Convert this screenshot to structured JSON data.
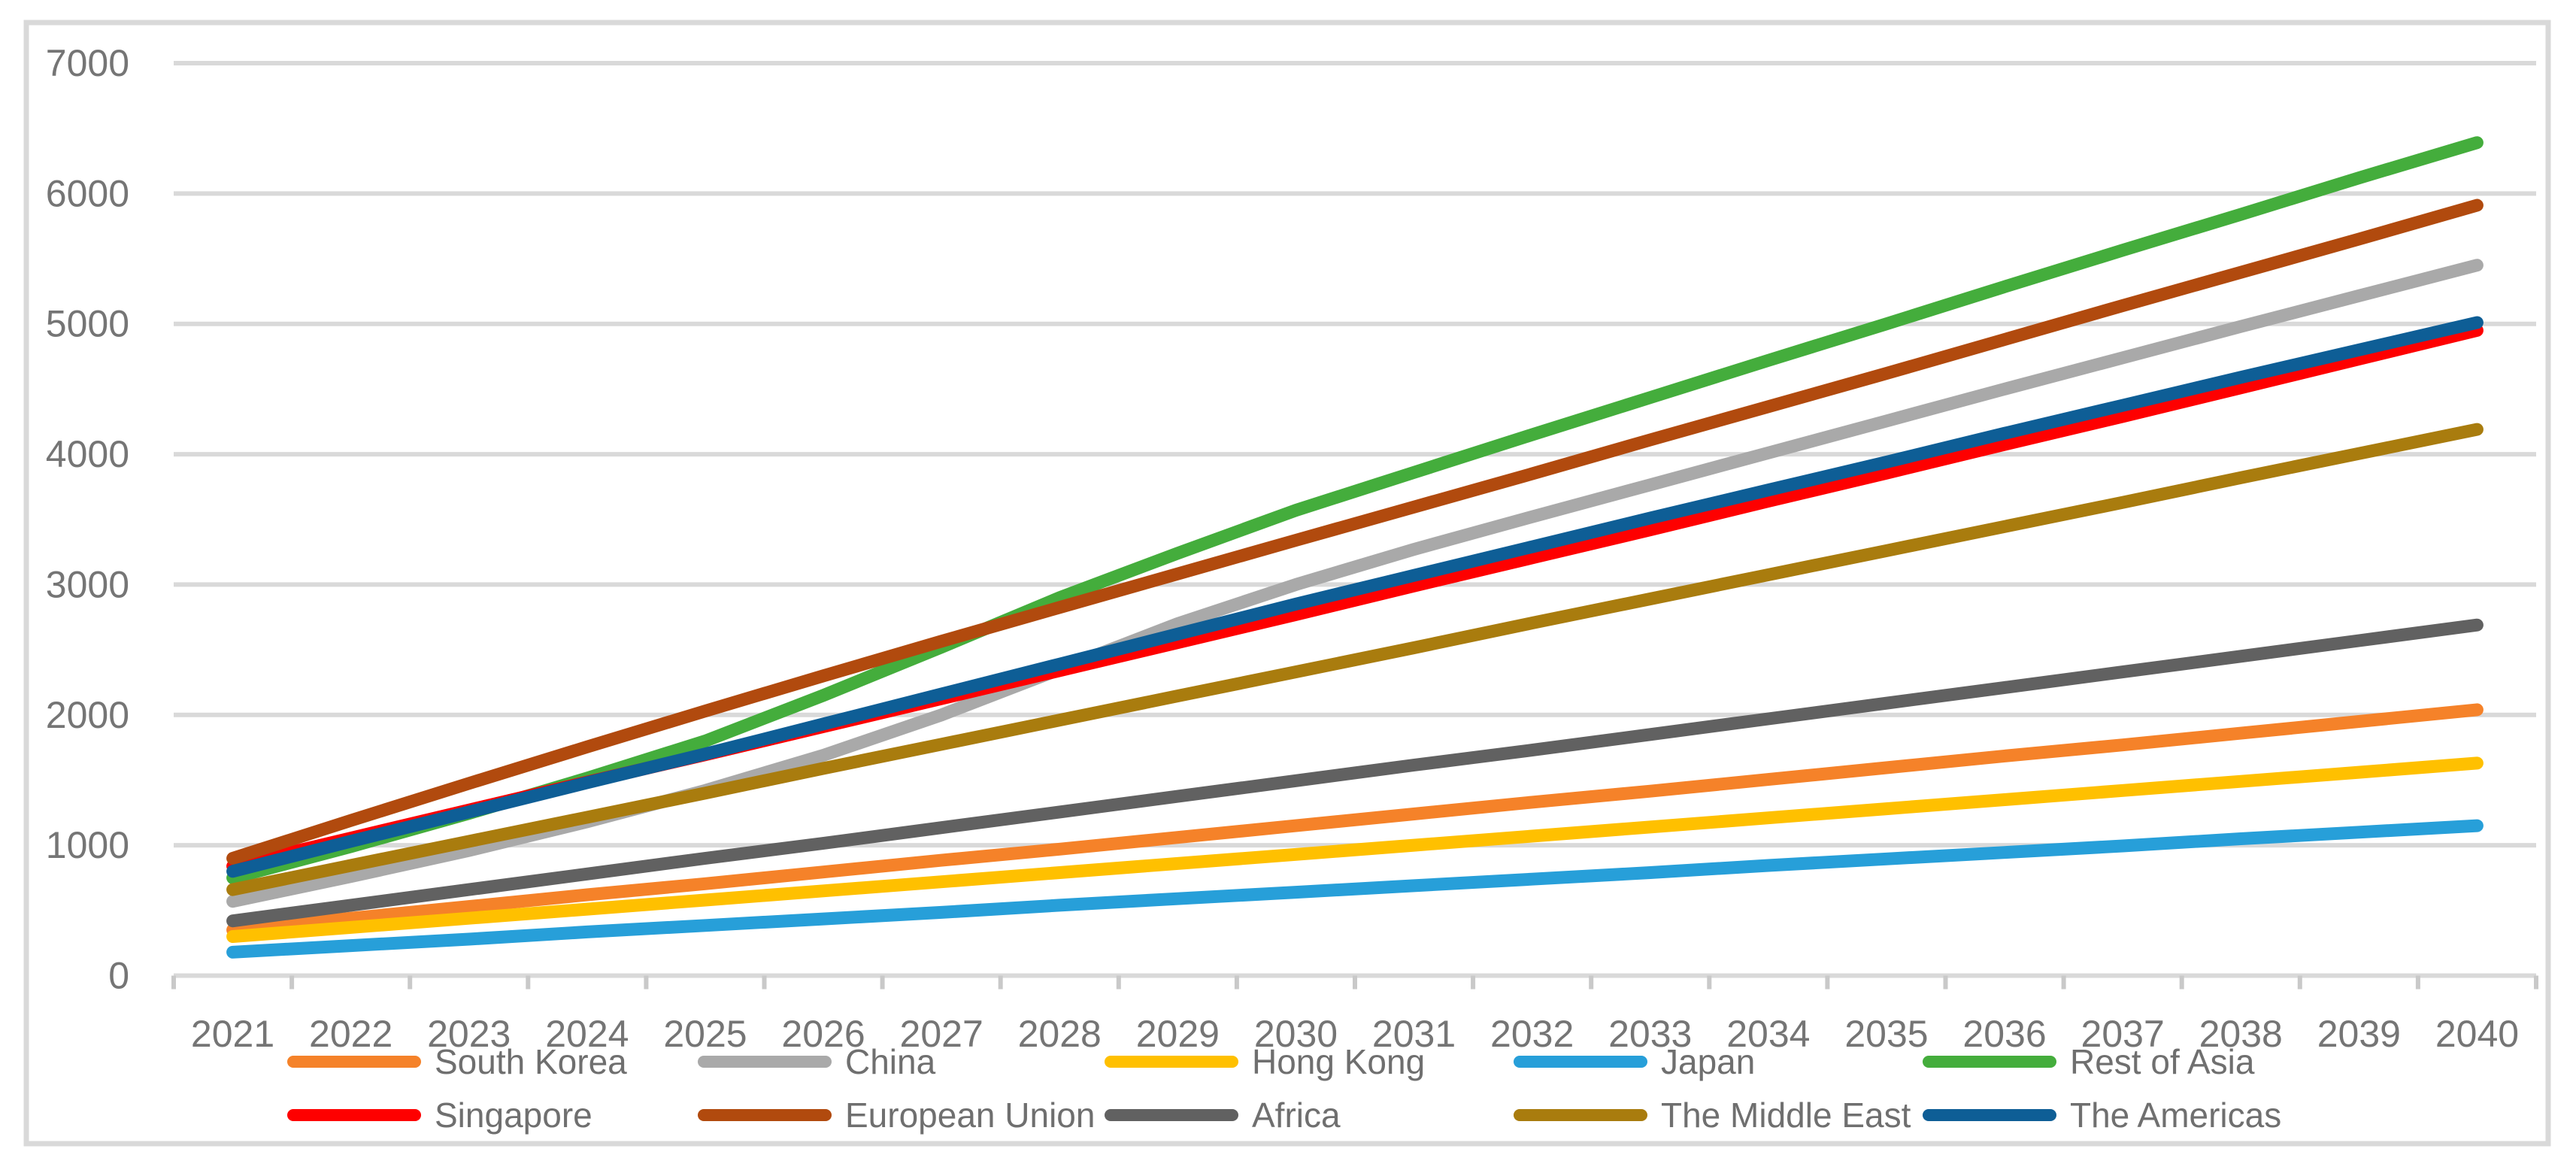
{
  "figure": {
    "background": "#FFFFFF",
    "border_color": "#D9D9D9"
  },
  "chart_data": {
    "type": "line",
    "title": "",
    "xlabel": "",
    "ylabel": "",
    "categories": [
      "2021",
      "2022",
      "2023",
      "2024",
      "2025",
      "2026",
      "2027",
      "2028",
      "2029",
      "2030",
      "2031",
      "2032",
      "2033",
      "2034",
      "2035",
      "2036",
      "2037",
      "2038",
      "2039",
      "2040"
    ],
    "y_axis": {
      "min": 0,
      "max": 7000,
      "step": 1000,
      "tick_labels": [
        "0",
        "1000",
        "2000",
        "3000",
        "4000",
        "5000",
        "6000",
        "7000"
      ]
    },
    "grid": true,
    "gridline_color": "#D9D9D9",
    "tick_color": "#C9C9C9",
    "axis_label_color": "#757575",
    "legend_text_color": "#6F6F6F",
    "legend_position": "bottom",
    "legend_rows": [
      [
        "South Korea",
        "China",
        "Hong Kong",
        "Japan",
        "Rest of Asia"
      ],
      [
        "Singapore",
        "European Union",
        "Africa",
        "The Middle East",
        "The Americas"
      ]
    ],
    "series": [
      {
        "name": "South Korea",
        "color": "#F58229",
        "values": [
          350,
          440,
          530,
          620,
          705,
          795,
          885,
          970,
          1060,
          1150,
          1240,
          1330,
          1415,
          1505,
          1595,
          1685,
          1770,
          1860,
          1950,
          2040
        ]
      },
      {
        "name": "China",
        "color": "#A9A9A9",
        "values": [
          570,
          760,
          960,
          1180,
          1420,
          1690,
          2000,
          2350,
          2700,
          3000,
          3270,
          3520,
          3765,
          4010,
          4255,
          4500,
          4740,
          4980,
          5215,
          5450
        ]
      },
      {
        "name": "Hong Kong",
        "color": "#FFC000",
        "values": [
          300,
          370,
          440,
          510,
          580,
          650,
          720,
          790,
          860,
          930,
          1000,
          1070,
          1140,
          1210,
          1280,
          1350,
          1420,
          1490,
          1560,
          1630
        ]
      },
      {
        "name": "Japan",
        "color": "#279FD9",
        "values": [
          180,
          230,
          280,
          335,
          385,
          435,
          485,
          540,
          590,
          640,
          690,
          740,
          790,
          845,
          895,
          945,
          995,
          1050,
          1100,
          1150
        ]
      },
      {
        "name": "Rest of Asia",
        "color": "#44AD3C",
        "values": [
          750,
          990,
          1245,
          1515,
          1800,
          2150,
          2520,
          2900,
          3240,
          3570,
          3860,
          4150,
          4435,
          4720,
          5000,
          5285,
          5565,
          5840,
          6120,
          6390
        ]
      },
      {
        "name": "Singapore",
        "color": "#FE0000",
        "values": [
          840,
          1055,
          1270,
          1485,
          1695,
          1910,
          2125,
          2340,
          2555,
          2770,
          2990,
          3205,
          3420,
          3640,
          3855,
          4075,
          4290,
          4510,
          4730,
          4950
        ]
      },
      {
        "name": "European Union",
        "color": "#B14A0E",
        "values": [
          900,
          1190,
          1475,
          1755,
          2030,
          2300,
          2565,
          2825,
          3082,
          3340,
          3595,
          3850,
          4110,
          4365,
          4620,
          4880,
          5140,
          5395,
          5650,
          5910
        ]
      },
      {
        "name": "Africa",
        "color": "#616161",
        "values": [
          420,
          540,
          660,
          780,
          900,
          1015,
          1135,
          1255,
          1375,
          1495,
          1615,
          1730,
          1850,
          1970,
          2090,
          2210,
          2330,
          2450,
          2570,
          2690
        ]
      },
      {
        "name": "The Middle East",
        "color": "#A97C0E",
        "values": [
          660,
          845,
          1030,
          1215,
          1400,
          1590,
          1775,
          1960,
          2145,
          2330,
          2515,
          2705,
          2890,
          3075,
          3260,
          3445,
          3630,
          3820,
          4005,
          4190
        ]
      },
      {
        "name": "The Americas",
        "color": "#0E5E96",
        "values": [
          800,
          1030,
          1255,
          1480,
          1700,
          1930,
          2160,
          2390,
          2620,
          2850,
          3070,
          3290,
          3510,
          3725,
          3940,
          4160,
          4375,
          4590,
          4800,
          5010
        ]
      }
    ]
  }
}
